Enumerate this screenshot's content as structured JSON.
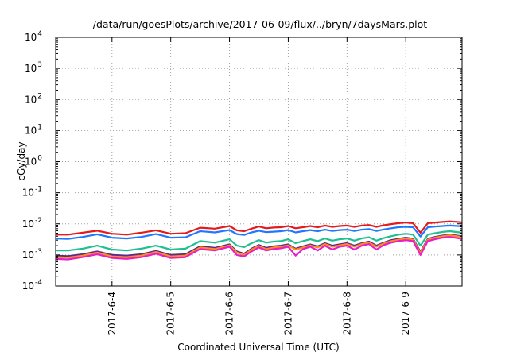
{
  "chart_data": {
    "type": "line",
    "title": "/data/run/goesPlots/archive/2017-06-09/flux/../bryn/7daysMars.plot",
    "xlabel": "Coordinated Universal Time (UTC)",
    "ylabel": "cGy/day",
    "yscale": "log",
    "ylim": [
      0.0001,
      10000
    ],
    "y_ticks": [
      {
        "value": 0.0001,
        "base": "10",
        "exp": "-4"
      },
      {
        "value": 0.001,
        "base": "10",
        "exp": "-3"
      },
      {
        "value": 0.01,
        "base": "10",
        "exp": "-2"
      },
      {
        "value": 0.1,
        "base": "10",
        "exp": "-1"
      },
      {
        "value": 1,
        "base": "10",
        "exp": "0"
      },
      {
        "value": 10,
        "base": "10",
        "exp": "1"
      },
      {
        "value": 100,
        "base": "10",
        "exp": "2"
      },
      {
        "value": 1000,
        "base": "10",
        "exp": "3"
      },
      {
        "value": 10000,
        "base": "10",
        "exp": "4"
      }
    ],
    "xlim": [
      "2017-06-03 01:00",
      "2017-06-09 23:00"
    ],
    "x_ticks": [
      "2017-6-4",
      "2017-6-5",
      "2017-6-6",
      "2017-6-7",
      "2017-6-8",
      "2017-6-9"
    ],
    "x_tick_dates": [
      "2017-06-04",
      "2017-06-05",
      "2017-06-06",
      "2017-06-07",
      "2017-06-08",
      "2017-06-09"
    ],
    "grid": true,
    "x": [
      "2017-06-03 01:00",
      "2017-06-03 06:00",
      "2017-06-03 12:00",
      "2017-06-03 18:00",
      "2017-06-04 00:00",
      "2017-06-04 06:00",
      "2017-06-04 12:00",
      "2017-06-04 18:00",
      "2017-06-05 00:00",
      "2017-06-05 06:00",
      "2017-06-05 12:00",
      "2017-06-05 18:00",
      "2017-06-06 00:00",
      "2017-06-06 03:00",
      "2017-06-06 06:00",
      "2017-06-06 09:00",
      "2017-06-06 12:00",
      "2017-06-06 15:00",
      "2017-06-06 18:00",
      "2017-06-06 21:00",
      "2017-06-07 00:00",
      "2017-06-07 03:00",
      "2017-06-07 06:00",
      "2017-06-07 09:00",
      "2017-06-07 12:00",
      "2017-06-07 15:00",
      "2017-06-07 18:00",
      "2017-06-07 21:00",
      "2017-06-08 00:00",
      "2017-06-08 03:00",
      "2017-06-08 06:00",
      "2017-06-08 09:00",
      "2017-06-08 12:00",
      "2017-06-08 15:00",
      "2017-06-08 18:00",
      "2017-06-08 21:00",
      "2017-06-09 00:00",
      "2017-06-09 03:00",
      "2017-06-09 06:00",
      "2017-06-09 09:00",
      "2017-06-09 12:00",
      "2017-06-09 15:00",
      "2017-06-09 18:00",
      "2017-06-09 23:00"
    ],
    "series": [
      {
        "color": "#e41a1c",
        "values": [
          0.0045,
          0.0045,
          0.0052,
          0.006,
          0.0048,
          0.0045,
          0.0052,
          0.0062,
          0.0048,
          0.005,
          0.0075,
          0.007,
          0.0085,
          0.0062,
          0.0058,
          0.007,
          0.0082,
          0.0072,
          0.0076,
          0.0078,
          0.0085,
          0.0072,
          0.0078,
          0.0085,
          0.0078,
          0.0088,
          0.008,
          0.0085,
          0.0088,
          0.008,
          0.0088,
          0.0092,
          0.008,
          0.009,
          0.0098,
          0.0105,
          0.011,
          0.0105,
          0.0052,
          0.0105,
          0.011,
          0.0115,
          0.012,
          0.0112
        ]
      },
      {
        "color": "#1f78ff",
        "values": [
          0.0034,
          0.0033,
          0.0038,
          0.0046,
          0.0036,
          0.0034,
          0.0038,
          0.0047,
          0.0036,
          0.0037,
          0.0058,
          0.0053,
          0.0063,
          0.0047,
          0.0044,
          0.0053,
          0.006,
          0.0054,
          0.0056,
          0.0058,
          0.0063,
          0.0053,
          0.0058,
          0.0063,
          0.0058,
          0.0065,
          0.0059,
          0.0063,
          0.0065,
          0.0059,
          0.0065,
          0.0068,
          0.0059,
          0.0066,
          0.0072,
          0.0078,
          0.008,
          0.0078,
          0.0039,
          0.0078,
          0.0082,
          0.0085,
          0.0088,
          0.0083
        ]
      },
      {
        "color": "#1fbf8f",
        "values": [
          0.0014,
          0.0014,
          0.0016,
          0.002,
          0.0015,
          0.0014,
          0.0016,
          0.002,
          0.0015,
          0.0016,
          0.0028,
          0.0025,
          0.0032,
          0.002,
          0.0018,
          0.0024,
          0.003,
          0.0025,
          0.0027,
          0.0028,
          0.0032,
          0.0024,
          0.0028,
          0.0032,
          0.0028,
          0.0034,
          0.0029,
          0.0032,
          0.0034,
          0.0029,
          0.0034,
          0.0037,
          0.0029,
          0.0035,
          0.004,
          0.0045,
          0.0048,
          0.0045,
          0.002,
          0.0045,
          0.005,
          0.0055,
          0.0058,
          0.0052
        ]
      },
      {
        "color": "#5a2a8a",
        "values": [
          0.00095,
          0.00092,
          0.00105,
          0.0013,
          0.001,
          0.00095,
          0.00105,
          0.00135,
          0.001,
          0.00105,
          0.0019,
          0.0017,
          0.0022,
          0.0013,
          0.0011,
          0.0016,
          0.0021,
          0.0017,
          0.0019,
          0.002,
          0.0022,
          0.0016,
          0.0019,
          0.0022,
          0.0019,
          0.0024,
          0.002,
          0.0022,
          0.0024,
          0.002,
          0.0024,
          0.0027,
          0.002,
          0.0025,
          0.003,
          0.0033,
          0.0036,
          0.0033,
          0.00125,
          0.0033,
          0.0038,
          0.0042,
          0.0045,
          0.004
        ]
      },
      {
        "color": "#ff8c1a",
        "values": [
          0.00085,
          0.00082,
          0.00095,
          0.0012,
          0.0009,
          0.00085,
          0.00095,
          0.00125,
          0.0009,
          0.00095,
          0.00175,
          0.00155,
          0.00205,
          0.0012,
          0.001,
          0.0015,
          0.00195,
          0.00155,
          0.00175,
          0.00185,
          0.00205,
          0.0015,
          0.00175,
          0.00205,
          0.00175,
          0.00225,
          0.00185,
          0.00205,
          0.00225,
          0.00185,
          0.00225,
          0.0025,
          0.00185,
          0.00235,
          0.0028,
          0.0031,
          0.0034,
          0.0031,
          0.00115,
          0.0031,
          0.0036,
          0.004,
          0.0043,
          0.0038
        ]
      },
      {
        "color": "#e81ec8",
        "values": [
          0.00075,
          0.00072,
          0.00085,
          0.00105,
          0.0008,
          0.00075,
          0.00085,
          0.0011,
          0.0008,
          0.00085,
          0.00155,
          0.0014,
          0.00185,
          0.001,
          0.0009,
          0.0013,
          0.00175,
          0.0014,
          0.00155,
          0.00165,
          0.00185,
          0.00095,
          0.00155,
          0.00185,
          0.0014,
          0.002,
          0.0015,
          0.00185,
          0.002,
          0.0015,
          0.002,
          0.00225,
          0.0015,
          0.0021,
          0.0025,
          0.0028,
          0.003,
          0.0028,
          0.001,
          0.0028,
          0.0032,
          0.0036,
          0.0038,
          0.0033
        ]
      }
    ]
  }
}
